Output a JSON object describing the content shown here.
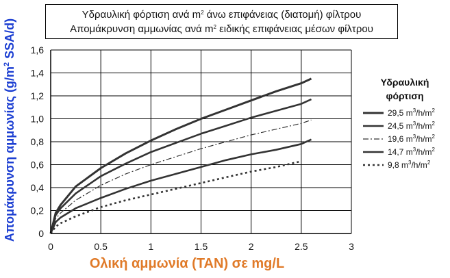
{
  "title": {
    "line1": {
      "pre": "Υδραυλική φόρτιση ανά m",
      "sup": "2",
      "post": " άνω επιφάνειας (διατομή) φίλτρου"
    },
    "line2": {
      "pre": "Απομάκρυνση αμμωνίας ανά m",
      "sup": "2",
      "post": " ειδικής επιφάνειας μέσων φίλτρου"
    }
  },
  "legend": {
    "title_line1": "Υδραυλική",
    "title_line2": "φόρτιση",
    "placement": "right"
  },
  "chart_data": {
    "type": "line",
    "title": "Υδραυλική φόρτιση ανά m² άνω επιφάνειας (διατομή) φίλτρου / Απομάκρυνση αμμωνίας ανά m² ειδικής επιφάνειας μέσων φίλτρου",
    "xlabel": "Ολική αμμωνία (TAN) σε mg/L",
    "ylabel": "Απομάκρυνση αμμωνίας (g/m² SSA/d)",
    "xlim": [
      0,
      3
    ],
    "ylim": [
      0,
      1.6
    ],
    "x_ticks": [
      "0",
      "0.5",
      "1",
      "1.5",
      "2",
      "2.5",
      "3"
    ],
    "y_ticks": [
      "0",
      "0,2",
      "0,4",
      "0,6",
      "0,8",
      "1,0",
      "1,2",
      "1,4",
      "1,6"
    ],
    "grid": "horizontal and vertical",
    "series": [
      {
        "name": "29,5 m³/h/m²",
        "label_num": "29,5",
        "style": "solid-thick",
        "x": [
          0,
          0.05,
          0.1,
          0.25,
          0.5,
          0.75,
          1,
          1.25,
          1.5,
          1.75,
          2,
          2.25,
          2.5,
          2.6
        ],
        "y": [
          0,
          0.18,
          0.25,
          0.41,
          0.57,
          0.7,
          0.81,
          0.91,
          1.0,
          1.08,
          1.16,
          1.24,
          1.31,
          1.35
        ]
      },
      {
        "name": "24,5 m³/h/m²",
        "label_num": "24,5",
        "style": "solid",
        "x": [
          0,
          0.05,
          0.1,
          0.25,
          0.5,
          0.75,
          1,
          1.25,
          1.5,
          1.75,
          2,
          2.25,
          2.5,
          2.6
        ],
        "y": [
          0,
          0.16,
          0.22,
          0.35,
          0.5,
          0.61,
          0.71,
          0.79,
          0.87,
          0.94,
          1.01,
          1.07,
          1.13,
          1.17
        ]
      },
      {
        "name": "19,6 m³/h/m²",
        "label_num": "19,6",
        "style": "dash-dot",
        "x": [
          0,
          0.05,
          0.1,
          0.25,
          0.5,
          0.75,
          1,
          1.25,
          1.5,
          1.75,
          2,
          2.25,
          2.5,
          2.6
        ],
        "y": [
          0,
          0.13,
          0.18,
          0.29,
          0.42,
          0.52,
          0.6,
          0.67,
          0.74,
          0.8,
          0.86,
          0.91,
          0.96,
          0.99
        ]
      },
      {
        "name": "14,7 m³/h/m²",
        "label_num": "14,7",
        "style": "solid",
        "x": [
          0,
          0.05,
          0.1,
          0.25,
          0.5,
          0.75,
          1,
          1.25,
          1.5,
          1.75,
          2,
          2.25,
          2.5,
          2.6
        ],
        "y": [
          0,
          0.1,
          0.14,
          0.22,
          0.31,
          0.39,
          0.46,
          0.52,
          0.58,
          0.64,
          0.69,
          0.73,
          0.78,
          0.82
        ]
      },
      {
        "name": "9,8 m³/h/m²",
        "label_num": "9,8",
        "style": "dotted",
        "x": [
          0,
          0.05,
          0.1,
          0.25,
          0.5,
          0.75,
          1,
          1.25,
          1.5,
          1.75,
          2,
          2.25,
          2.5
        ],
        "y": [
          0,
          0.06,
          0.09,
          0.15,
          0.23,
          0.29,
          0.34,
          0.39,
          0.44,
          0.49,
          0.54,
          0.58,
          0.63
        ]
      }
    ]
  },
  "colors": {
    "xlabel": "#e07a28",
    "ylabel": "#1c3fd2",
    "lines": "#333333",
    "grid": "#000000"
  }
}
